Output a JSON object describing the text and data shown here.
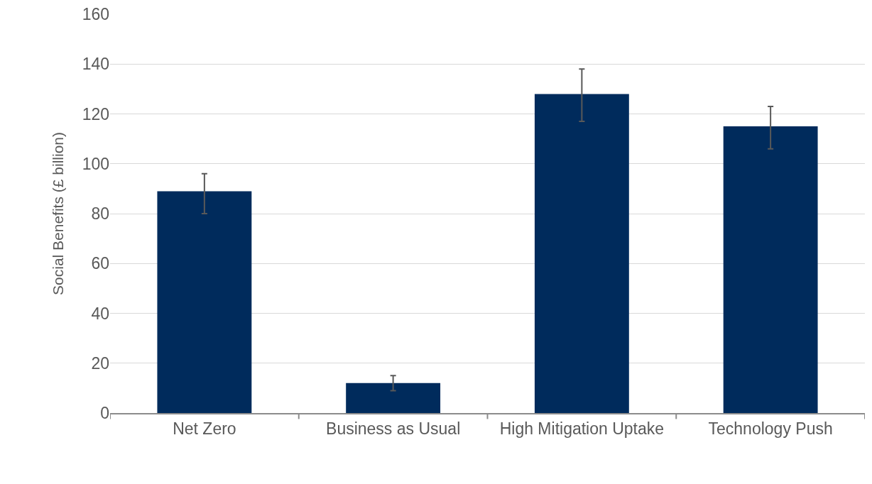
{
  "chart_data": {
    "type": "bar",
    "ylabel": "Social Benefits (£ billion)",
    "categories": [
      "Net Zero",
      "Business as Usual",
      "High Mitigation Uptake",
      "Technology Push"
    ],
    "values": [
      89,
      12,
      128,
      115
    ],
    "errors": [
      [
        80,
        96
      ],
      [
        9,
        15
      ],
      [
        117,
        138
      ],
      [
        106,
        123
      ]
    ],
    "color": "#002b5c",
    "ylim": [
      0,
      160
    ],
    "yticks": [
      0,
      20,
      40,
      60,
      80,
      100,
      120,
      140,
      160
    ],
    "grid": "y"
  }
}
